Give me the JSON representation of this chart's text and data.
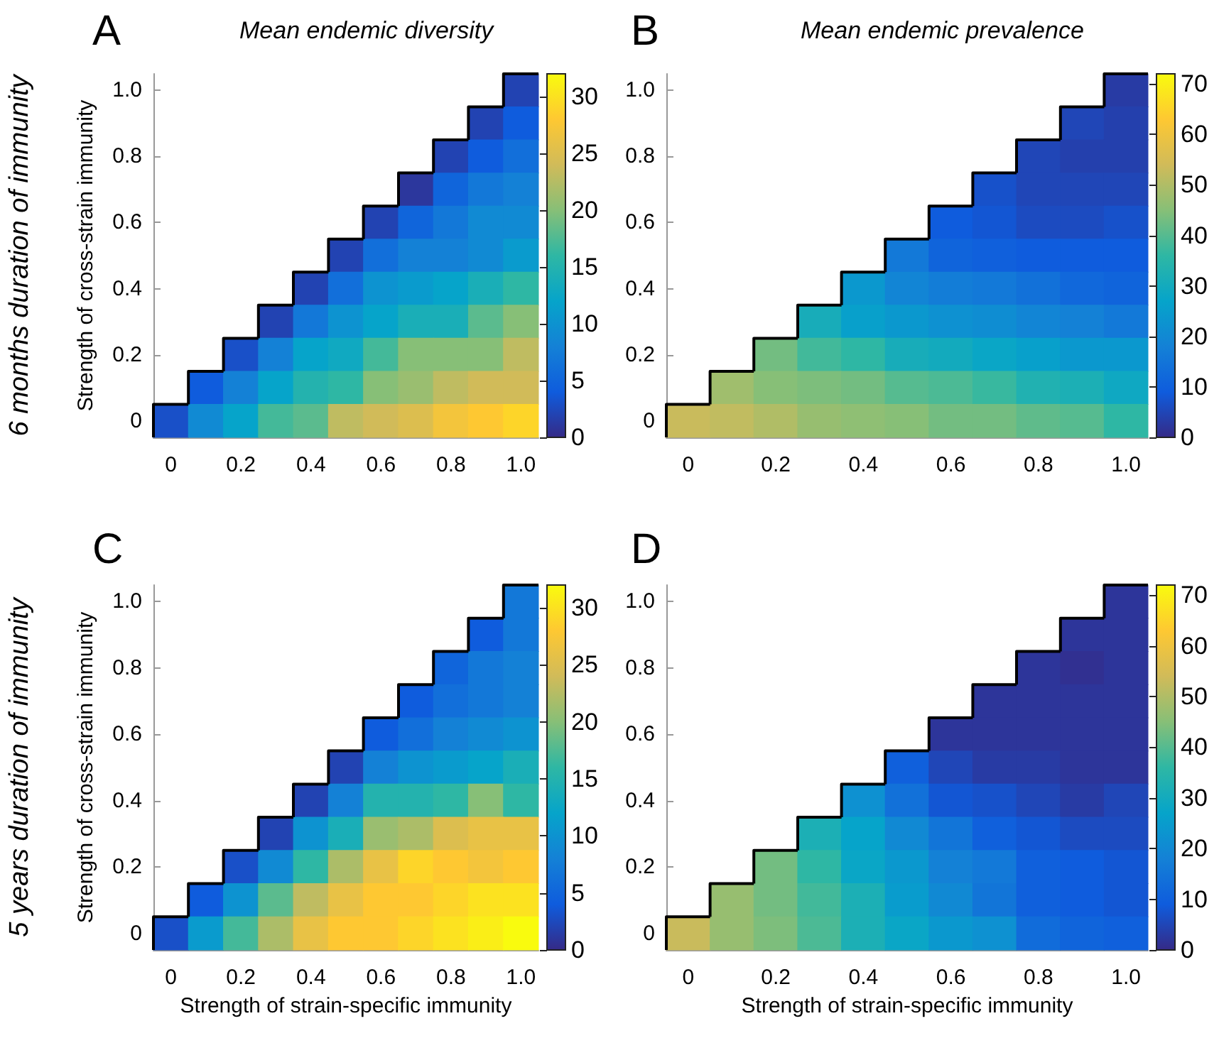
{
  "chart_data": [
    {
      "type": "heatmap",
      "title": "A",
      "subtitle": "Mean endemic diversity",
      "ylabel": "Strength of cross-strain immunity",
      "annotations": [
        "6 months duration of immunity"
      ],
      "categories": [
        "0",
        null,
        "0.2",
        null,
        "0.4",
        null,
        "0.6",
        null,
        "0.8",
        null,
        "1.0"
      ],
      "y_categories": [
        "1.0",
        null,
        "0.8",
        null,
        "0.6",
        null,
        "0.4",
        null,
        "0.2",
        null,
        "0"
      ],
      "cells": [
        [
          null,
          null,
          null,
          null,
          null,
          null,
          null,
          null,
          null,
          null,
          2
        ],
        [
          null,
          null,
          null,
          null,
          null,
          null,
          null,
          null,
          null,
          2,
          4
        ],
        [
          null,
          null,
          null,
          null,
          null,
          null,
          null,
          null,
          2,
          4,
          6
        ],
        [
          null,
          null,
          null,
          null,
          null,
          null,
          null,
          1,
          5,
          7,
          8
        ],
        [
          null,
          null,
          null,
          null,
          null,
          null,
          2,
          5,
          7,
          9,
          9
        ],
        [
          null,
          null,
          null,
          null,
          null,
          2,
          6,
          8,
          8,
          9,
          11
        ],
        [
          null,
          null,
          null,
          null,
          2,
          6,
          10,
          11,
          12,
          14,
          16
        ],
        [
          null,
          null,
          null,
          2,
          7,
          10,
          12,
          14,
          14,
          18,
          20
        ],
        [
          null,
          null,
          3,
          8,
          12,
          13,
          17,
          20,
          20,
          20,
          23
        ],
        [
          null,
          4,
          8,
          12,
          15,
          16,
          20,
          21,
          23,
          24,
          24
        ],
        [
          3,
          9,
          12,
          17,
          18,
          23,
          24,
          25,
          27,
          28,
          29
        ]
      ],
      "clim": [
        0,
        32
      ],
      "cticks": [
        0,
        5,
        10,
        15,
        20,
        25,
        30
      ]
    },
    {
      "type": "heatmap",
      "title": "B",
      "subtitle": "Mean endemic prevalence",
      "categories": [
        "0",
        null,
        "0.2",
        null,
        "0.4",
        null,
        "0.6",
        null,
        "0.8",
        null,
        "1.0"
      ],
      "y_categories": [
        "1.0",
        null,
        "0.8",
        null,
        "0.6",
        null,
        "0.4",
        null,
        "0.2",
        null,
        "0"
      ],
      "cells": [
        [
          null,
          null,
          null,
          null,
          null,
          null,
          null,
          null,
          null,
          null,
          3
        ],
        [
          null,
          null,
          null,
          null,
          null,
          null,
          null,
          null,
          null,
          5,
          4
        ],
        [
          null,
          null,
          null,
          null,
          null,
          null,
          null,
          null,
          5,
          4,
          4
        ],
        [
          null,
          null,
          null,
          null,
          null,
          null,
          null,
          7,
          5,
          5,
          5
        ],
        [
          null,
          null,
          null,
          null,
          null,
          null,
          9,
          8,
          6,
          6,
          7
        ],
        [
          null,
          null,
          null,
          null,
          null,
          16,
          11,
          10,
          9,
          9,
          9
        ],
        [
          null,
          null,
          null,
          null,
          24,
          19,
          17,
          16,
          14,
          12,
          11
        ],
        [
          null,
          null,
          null,
          31,
          26,
          24,
          22,
          21,
          19,
          18,
          16
        ],
        [
          null,
          null,
          43,
          38,
          36,
          31,
          30,
          28,
          26,
          24,
          24
        ],
        [
          null,
          48,
          45,
          44,
          43,
          40,
          39,
          37,
          33,
          32,
          29
        ],
        [
          53,
          52,
          50,
          47,
          46,
          45,
          43,
          43,
          41,
          40,
          36
        ]
      ],
      "clim": [
        0,
        72
      ],
      "cticks": [
        0,
        10,
        20,
        30,
        40,
        50,
        60,
        70
      ]
    },
    {
      "type": "heatmap",
      "title": "C",
      "xlabel": "Strength of strain-specific immunity",
      "ylabel": "Strength of cross-strain immunity",
      "annotations": [
        "5 years duration of immunity"
      ],
      "categories": [
        "0",
        null,
        "0.2",
        null,
        "0.4",
        null,
        "0.6",
        null,
        "0.8",
        null,
        "1.0"
      ],
      "y_categories": [
        "1.0",
        null,
        "0.8",
        null,
        "0.6",
        null,
        "0.4",
        null,
        "0.2",
        null,
        "0"
      ],
      "cells": [
        [
          null,
          null,
          null,
          null,
          null,
          null,
          null,
          null,
          null,
          null,
          7
        ],
        [
          null,
          null,
          null,
          null,
          null,
          null,
          null,
          null,
          null,
          4,
          7
        ],
        [
          null,
          null,
          null,
          null,
          null,
          null,
          null,
          null,
          5,
          7,
          8
        ],
        [
          null,
          null,
          null,
          null,
          null,
          null,
          null,
          4,
          6,
          7,
          8
        ],
        [
          null,
          null,
          null,
          null,
          null,
          null,
          4,
          6,
          8,
          9,
          10
        ],
        [
          null,
          null,
          null,
          null,
          null,
          2,
          8,
          10,
          11,
          12,
          14
        ],
        [
          null,
          null,
          null,
          null,
          2,
          8,
          15,
          15,
          16,
          20,
          16
        ],
        [
          null,
          null,
          null,
          2,
          10,
          14,
          21,
          22,
          25,
          26,
          26
        ],
        [
          null,
          null,
          3,
          9,
          16,
          22,
          26,
          29,
          28,
          27,
          28
        ],
        [
          null,
          4,
          10,
          18,
          23,
          26,
          28,
          28,
          29,
          30,
          30
        ],
        [
          3,
          11,
          17,
          22,
          26,
          28,
          28,
          29,
          30,
          31,
          32
        ]
      ],
      "clim": [
        0,
        32
      ],
      "cticks": [
        0,
        5,
        10,
        15,
        20,
        25,
        30
      ]
    },
    {
      "type": "heatmap",
      "title": "D",
      "xlabel": "Strength of strain-specific immunity",
      "categories": [
        "0",
        null,
        "0.2",
        null,
        "0.4",
        null,
        "0.6",
        null,
        "0.8",
        null,
        "1.0"
      ],
      "y_categories": [
        "1.0",
        null,
        "0.8",
        null,
        "0.6",
        null,
        "0.4",
        null,
        "0.2",
        null,
        "0"
      ],
      "cells": [
        [
          null,
          null,
          null,
          null,
          null,
          null,
          null,
          null,
          null,
          null,
          2
        ],
        [
          null,
          null,
          null,
          null,
          null,
          null,
          null,
          null,
          null,
          2,
          2
        ],
        [
          null,
          null,
          null,
          null,
          null,
          null,
          null,
          null,
          2,
          1,
          2
        ],
        [
          null,
          null,
          null,
          null,
          null,
          null,
          null,
          2,
          2,
          2,
          2
        ],
        [
          null,
          null,
          null,
          null,
          null,
          null,
          2,
          2,
          2,
          2,
          2
        ],
        [
          null,
          null,
          null,
          null,
          null,
          10,
          5,
          3,
          3,
          2,
          2
        ],
        [
          null,
          null,
          null,
          null,
          22,
          14,
          8,
          7,
          5,
          3,
          5
        ],
        [
          null,
          null,
          null,
          32,
          27,
          20,
          15,
          10,
          8,
          6,
          6
        ],
        [
          null,
          null,
          43,
          36,
          28,
          24,
          18,
          16,
          10,
          9,
          8
        ],
        [
          null,
          47,
          43,
          38,
          32,
          25,
          20,
          15,
          10,
          9,
          8
        ],
        [
          53,
          47,
          44,
          39,
          32,
          28,
          24,
          22,
          13,
          11,
          10
        ]
      ],
      "clim": [
        0,
        72
      ],
      "cticks": [
        0,
        10,
        20,
        30,
        40,
        50,
        60,
        70
      ]
    }
  ]
}
